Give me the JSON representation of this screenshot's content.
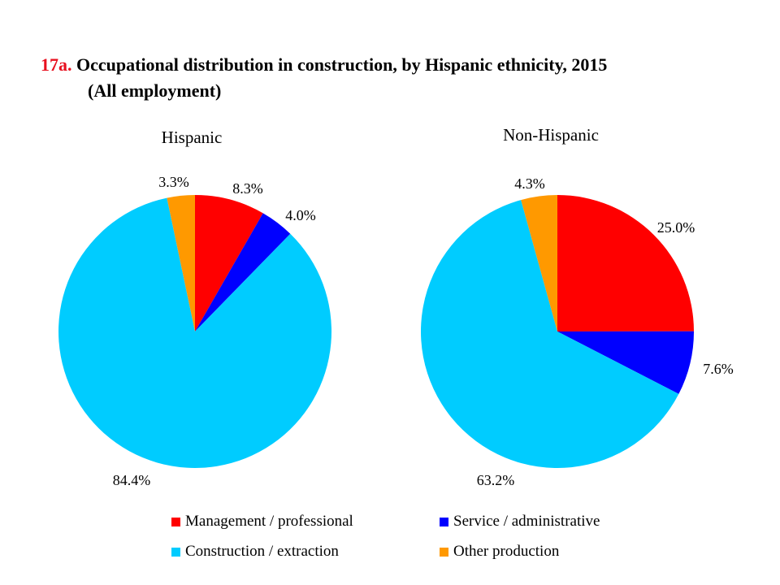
{
  "title": {
    "number": "17a.",
    "text": "Occupational distribution in construction, by Hispanic ethnicity, 2015",
    "subtitle": "(All employment)"
  },
  "legend": [
    {
      "label": "Management / professional",
      "color": "#ff0000"
    },
    {
      "label": "Service / administrative",
      "color": "#0000ff"
    },
    {
      "label": "Construction / extraction",
      "color": "#00ccff"
    },
    {
      "label": "Other production",
      "color": "#ff9900"
    }
  ],
  "chart_data": [
    {
      "type": "pie",
      "title": "Hispanic",
      "categories": [
        "Management / professional",
        "Service / administrative",
        "Construction / extraction",
        "Other production"
      ],
      "values": [
        8.3,
        4.0,
        84.4,
        3.3
      ],
      "labels": [
        "8.3%",
        "4.0%",
        "84.4%",
        "3.3%"
      ],
      "colors": [
        "#ff0000",
        "#0000ff",
        "#00ccff",
        "#ff9900"
      ]
    },
    {
      "type": "pie",
      "title": "Non-Hispanic",
      "categories": [
        "Management / professional",
        "Service / administrative",
        "Construction / extraction",
        "Other production"
      ],
      "values": [
        25.0,
        7.6,
        63.2,
        4.3
      ],
      "labels": [
        "25.0%",
        "7.6%",
        "63.2%",
        "4.3%"
      ],
      "colors": [
        "#ff0000",
        "#0000ff",
        "#00ccff",
        "#ff9900"
      ]
    }
  ]
}
